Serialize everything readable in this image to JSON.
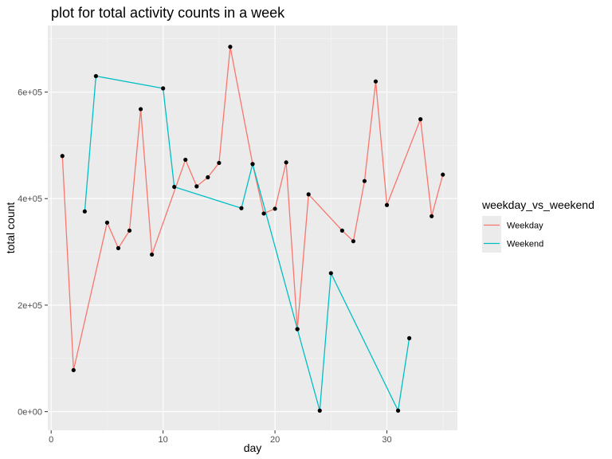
{
  "chart_data": {
    "type": "line",
    "title": "plot for total activity counts in a week",
    "xlabel": "day",
    "ylabel": "total count",
    "xlim": [
      -0.3,
      36.3
    ],
    "ylim": [
      -35000,
      725000
    ],
    "xticks": [
      0,
      10,
      20,
      30
    ],
    "xtick_labels": [
      "0",
      "10",
      "20",
      "30"
    ],
    "yticks": [
      0,
      200000,
      400000,
      600000
    ],
    "ytick_labels": [
      "0e+00",
      "2e+05",
      "4e+05",
      "6e+05"
    ],
    "grid": true,
    "legend": {
      "title": "weekday_vs_weekend",
      "placement": "right",
      "entries": [
        "Weekday",
        "Weekend"
      ]
    },
    "series": [
      {
        "name": "Weekday",
        "color": "#F8766D",
        "points": [
          [
            1,
            480000
          ],
          [
            2,
            78000
          ],
          [
            5,
            355000
          ],
          [
            6,
            307000
          ],
          [
            7,
            340000
          ],
          [
            8,
            568000
          ],
          [
            9,
            295000
          ],
          [
            12,
            473000
          ],
          [
            13,
            423000
          ],
          [
            14,
            440000
          ],
          [
            15,
            467000
          ],
          [
            16,
            685000
          ],
          [
            18,
            465000
          ],
          [
            19,
            372000
          ],
          [
            20,
            381000
          ],
          [
            21,
            468000
          ],
          [
            22,
            155000
          ],
          [
            23,
            408000
          ],
          [
            26,
            340000
          ],
          [
            27,
            320000
          ],
          [
            28,
            433000
          ],
          [
            29,
            620000
          ],
          [
            30,
            388000
          ],
          [
            33,
            549000
          ],
          [
            34,
            367000
          ],
          [
            35,
            445000
          ]
        ]
      },
      {
        "name": "Weekend",
        "color": "#00BFC4",
        "points": [
          [
            3,
            376000
          ],
          [
            4,
            630000
          ],
          [
            10,
            607000
          ],
          [
            11,
            422000
          ],
          [
            17,
            382000
          ],
          [
            18,
            465000
          ],
          [
            22,
            155000
          ],
          [
            24,
            2000
          ],
          [
            25,
            260000
          ],
          [
            31,
            2000
          ],
          [
            32,
            138000
          ]
        ]
      }
    ]
  }
}
